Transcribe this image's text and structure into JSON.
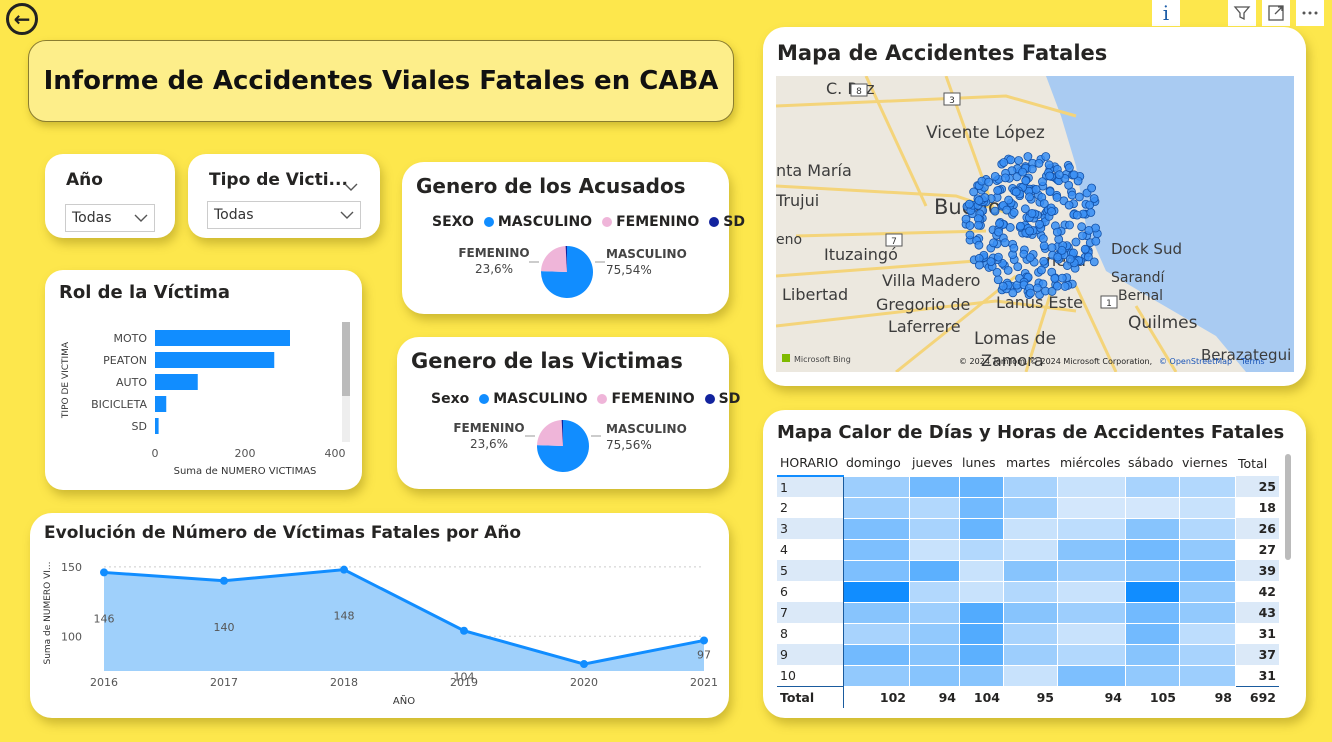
{
  "header": {
    "title": "Informe de Accidentes Viales Fatales en CABA"
  },
  "icons": {
    "back": "back-arrow-icon",
    "info": "info-icon",
    "filter": "filter-icon",
    "focus": "focus-mode-icon",
    "more": "more-options-icon"
  },
  "slicers": {
    "year": {
      "label": "Año",
      "value": "Todas"
    },
    "victim_type": {
      "label": "Tipo de Victi...",
      "value": "Todas"
    }
  },
  "rol_victima": {
    "title": "Rol de la Víctima",
    "ylabel": "TIPO DE VICTIMA",
    "xlabel": "Suma de NUMERO VICTIMAS",
    "ticks": [
      "0",
      "200",
      "400"
    ]
  },
  "acusados": {
    "title": "Genero de los Acusados",
    "legend_title": "SEXO",
    "legend": [
      "MASCULINO",
      "FEMENINO",
      "SD"
    ],
    "lbl_fem_name": "FEMENINO",
    "lbl_fem_val": "23,6%",
    "lbl_masc_name": "MASCULINO",
    "lbl_masc_val": "75,54%"
  },
  "victimas": {
    "title": "Genero de las Victimas",
    "legend_title": "Sexo",
    "legend": [
      "MASCULINO",
      "FEMENINO",
      "SD"
    ],
    "lbl_fem_name": "FEMENINO",
    "lbl_fem_val": "23,6%",
    "lbl_masc_name": "MASCULINO",
    "lbl_masc_val": "75,56%"
  },
  "evolucion": {
    "title": "Evolución de Número de Víctimas Fatales por Año",
    "ylabel": "Suma de NUMERO VI...",
    "xlabel": "AÑO",
    "yticks": [
      "150",
      "100"
    ]
  },
  "mapa": {
    "title": "Mapa de Accidentes Fatales",
    "places": [
      "C. Paz",
      "Vicente López",
      "nta María",
      "Trujui",
      "Bueno",
      "eno",
      "Ituzaingó",
      "Villa Madero",
      "Libertad",
      "Gregorio de",
      "Laferrere",
      "Lanús Este",
      "Lomas de",
      "Zamora",
      "Dock Sud",
      "Sarandí",
      "Bernal",
      "Quilmes",
      "Berazategui",
      "neda"
    ],
    "roads": [
      "8",
      "3",
      "7",
      "1"
    ],
    "copyright": "© 2024 TomTom, © 2024 Microsoft Corporation, ",
    "copyright_link": "© OpenStreetMap",
    "terms": "Terms",
    "bing": "Microsoft Bing"
  },
  "calor": {
    "title": "Mapa Calor de Días y Horas de Accidentes Fatales",
    "columns": [
      "HORARIO",
      "domingo",
      "jueves",
      "lunes",
      "martes",
      "miércoles",
      "sábado",
      "viernes",
      "Total"
    ],
    "rows": [
      {
        "h": "1",
        "total": "25",
        "shades": [
          0.35,
          0.55,
          0.6,
          0.3,
          0.15,
          0.3,
          0.25
        ]
      },
      {
        "h": "2",
        "total": "18",
        "shades": [
          0.35,
          0.25,
          0.55,
          0.35,
          0.1,
          0.1,
          0.15
        ]
      },
      {
        "h": "3",
        "total": "26",
        "shades": [
          0.5,
          0.3,
          0.6,
          0.15,
          0.2,
          0.45,
          0.25
        ]
      },
      {
        "h": "4",
        "total": "27",
        "shades": [
          0.5,
          0.15,
          0.25,
          0.15,
          0.45,
          0.55,
          0.4
        ]
      },
      {
        "h": "5",
        "total": "39",
        "shades": [
          0.5,
          0.65,
          0.15,
          0.45,
          0.35,
          0.45,
          0.5
        ]
      },
      {
        "h": "6",
        "total": "42",
        "shades": [
          1.0,
          0.25,
          0.15,
          0.25,
          0.15,
          1.0,
          0.4
        ]
      },
      {
        "h": "7",
        "total": "43",
        "shades": [
          0.45,
          0.35,
          0.7,
          0.45,
          0.35,
          0.55,
          0.4
        ]
      },
      {
        "h": "8",
        "total": "31",
        "shades": [
          0.3,
          0.4,
          0.7,
          0.3,
          0.15,
          0.55,
          0.2
        ]
      },
      {
        "h": "9",
        "total": "37",
        "shades": [
          0.55,
          0.45,
          0.65,
          0.35,
          0.25,
          0.45,
          0.3
        ]
      },
      {
        "h": "10",
        "total": "31",
        "shades": [
          0.4,
          0.45,
          0.45,
          0.15,
          0.5,
          0.4,
          0.35
        ]
      }
    ],
    "totals": [
      "Total",
      "102",
      "94",
      "104",
      "95",
      "94",
      "105",
      "98",
      "692"
    ]
  },
  "colors": {
    "accent": "#118dff",
    "pink": "#efb5d9",
    "navy": "#12239e",
    "background": "#fde74c"
  },
  "chart_data": [
    {
      "type": "bar",
      "title": "Rol de la Víctima",
      "categories": [
        "MOTO",
        "PEATON",
        "AUTO",
        "BICICLETA",
        "SD"
      ],
      "values": [
        300,
        265,
        95,
        25,
        8
      ],
      "xlabel": "Suma de NUMERO VICTIMAS",
      "ylabel": "TIPO DE VICTIMA",
      "xlim": [
        0,
        400
      ]
    },
    {
      "type": "pie",
      "title": "Genero de los Acusados",
      "categories": [
        "MASCULINO",
        "FEMENINO",
        "SD"
      ],
      "values": [
        75.54,
        23.6,
        0.86
      ]
    },
    {
      "type": "pie",
      "title": "Genero de las Victimas",
      "categories": [
        "MASCULINO",
        "FEMENINO",
        "SD"
      ],
      "values": [
        75.56,
        23.6,
        0.84
      ]
    },
    {
      "type": "area",
      "title": "Evolución de Número de Víctimas Fatales por Año",
      "categories": [
        "2016",
        "2017",
        "2018",
        "2019",
        "2020",
        "2021"
      ],
      "values": [
        146,
        140,
        148,
        104,
        80,
        97
      ],
      "xlabel": "AÑO",
      "ylabel": "Suma de NUMERO VI...",
      "ylim": [
        75,
        160
      ]
    }
  ]
}
